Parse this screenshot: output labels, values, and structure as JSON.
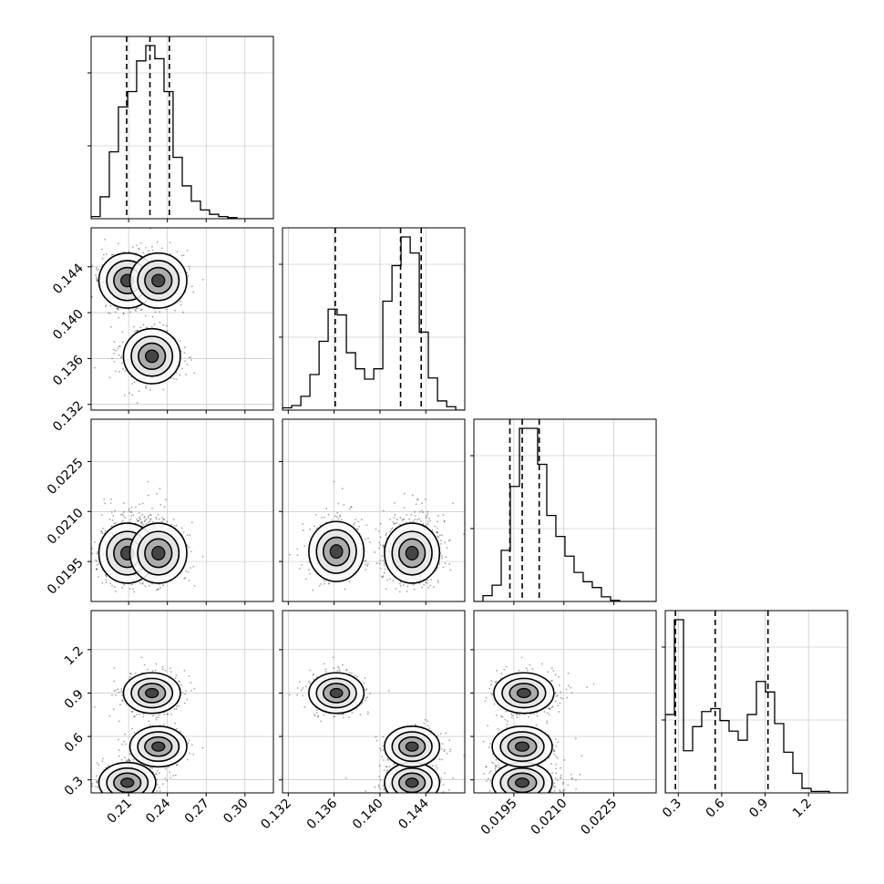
{
  "chart_data": {
    "type": "corner",
    "title": "",
    "parameters": [
      "",
      "",
      "",
      ""
    ],
    "ranges": [
      [
        0.181,
        0.322
      ],
      [
        0.1315,
        0.1474
      ],
      [
        0.0183,
        0.02377
      ],
      [
        0.21,
        1.47
      ]
    ],
    "ticks": [
      [
        "0.21",
        "0.24",
        "0.27",
        "0.30"
      ],
      [
        "0.132",
        "0.136",
        "0.140",
        "0.144"
      ],
      [
        "0.0195",
        "0.0210",
        "0.0225"
      ],
      [
        "0.3",
        "0.6",
        "0.9",
        "1.2"
      ]
    ],
    "quantiles": [
      [
        0.2085,
        0.2265,
        0.2415
      ],
      [
        0.1361,
        0.1418,
        0.1436
      ],
      [
        0.01938,
        0.01975,
        0.02026
      ],
      [
        0.28,
        0.555,
        0.92
      ]
    ],
    "histograms": [
      {
        "bins": [
          0.181,
          0.188,
          0.1951,
          0.2021,
          0.2092,
          0.2162,
          0.2233,
          0.2303,
          0.2374,
          0.2444,
          0.2515,
          0.2585,
          0.2656,
          0.2726,
          0.2797,
          0.2867,
          0.2938,
          0.3008,
          0.3079,
          0.3149,
          0.322
        ],
        "counts": [
          2,
          20,
          61,
          102,
          116,
          144,
          158,
          146,
          116,
          56,
          30,
          16,
          8,
          4,
          2,
          1,
          0,
          0,
          0,
          0
        ]
      },
      {
        "bins": [
          0.1315,
          0.1323,
          0.1331,
          0.13389,
          0.13469,
          0.13548,
          0.13627,
          0.13707,
          0.13787,
          0.13866,
          0.13946,
          0.14025,
          0.14105,
          0.14184,
          0.14264,
          0.14343,
          0.14422,
          0.14502,
          0.14582,
          0.14661,
          0.1474
        ],
        "counts": [
          2,
          4,
          12,
          31,
          60,
          88,
          83,
          50,
          36,
          27,
          36,
          95,
          126,
          151,
          137,
          68,
          28,
          8,
          3,
          0
        ]
      },
      {
        "bins": [
          0.0183,
          0.018573,
          0.018847,
          0.01912,
          0.019393,
          0.019667,
          0.01994,
          0.020213,
          0.020487,
          0.02076,
          0.021033,
          0.021307,
          0.02158,
          0.021853,
          0.022127,
          0.0224,
          0.022673,
          0.022947,
          0.02322,
          0.023493,
          0.02377
        ],
        "counts": [
          0,
          5,
          14,
          44,
          99,
          149,
          149,
          118,
          74,
          56,
          39,
          25,
          17,
          12,
          4,
          1,
          0,
          0,
          0,
          0
        ]
      },
      {
        "bins": [
          0.21,
          0.273,
          0.336,
          0.399,
          0.462,
          0.525,
          0.588,
          0.651,
          0.714,
          0.777,
          0.84,
          0.903,
          0.966,
          1.029,
          1.092,
          1.155,
          1.218,
          1.281,
          1.344,
          1.407,
          1.47
        ],
        "counts": [
          52,
          115,
          28,
          44,
          54,
          56,
          48,
          41,
          35,
          52,
          74,
          67,
          46,
          27,
          13,
          3,
          1,
          1,
          0,
          0
        ]
      }
    ],
    "mode_centers": [
      {
        "p0": 0.209,
        "p1": 0.1428,
        "p2": 0.01975,
        "p3": 0.28
      },
      {
        "p0": 0.233,
        "p1": 0.1428,
        "p2": 0.01975,
        "p3": 0.53
      },
      {
        "p0": 0.228,
        "p1": 0.1362,
        "p2": 0.0198,
        "p3": 0.9
      }
    ],
    "grid": true,
    "legend": "none"
  }
}
